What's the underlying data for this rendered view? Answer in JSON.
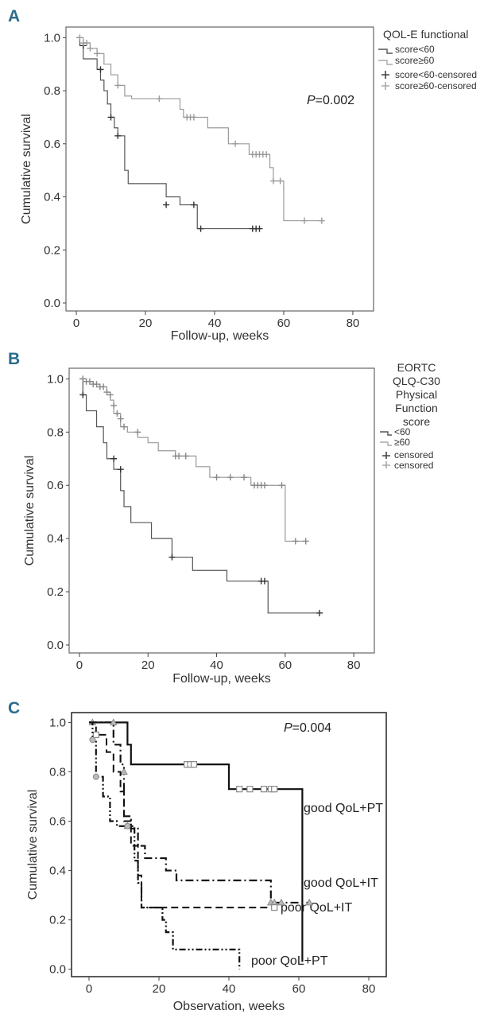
{
  "figure": {
    "panels": [
      {
        "label": "A",
        "legend_title": "QOL-E functional",
        "legend_items": [
          "score<60",
          "score≥60",
          "score<60-censored",
          "score≥60-censored"
        ],
        "p_prefix": "P",
        "p_value": "=0.002"
      },
      {
        "label": "B",
        "legend_title_lines": [
          "EORTC",
          "QLQ-C30",
          "Physical",
          "Function",
          "score"
        ],
        "legend_items": [
          "<60",
          "≥60",
          "censored",
          "censored"
        ]
      },
      {
        "label": "C",
        "p_prefix": "P",
        "p_value": "=0.004",
        "curve_labels": [
          "good QoL+PT",
          "good QoL+IT",
          "poor QoL+IT",
          "poor QoL+PT"
        ]
      }
    ]
  },
  "chart_data": [
    {
      "type": "line",
      "subtype": "kaplan-meier",
      "panel": "A",
      "legend_title": "QOL-E functional",
      "xlabel": "Follow-up, weeks",
      "ylabel": "Cumulative survival",
      "xlim": [
        -3,
        86
      ],
      "ylim": [
        -0.03,
        1.04
      ],
      "x_ticks": [
        0,
        20,
        40,
        60,
        80
      ],
      "y_ticks": [
        0.0,
        0.2,
        0.4,
        0.6,
        0.8,
        1.0
      ],
      "series": [
        {
          "name": "score<60",
          "steps": [
            [
              0,
              1.0
            ],
            [
              1,
              0.97
            ],
            [
              2,
              0.92
            ],
            [
              6,
              0.88
            ],
            [
              7,
              0.84
            ],
            [
              8,
              0.8
            ],
            [
              9,
              0.75
            ],
            [
              10,
              0.7
            ],
            [
              11,
              0.66
            ],
            [
              12,
              0.63
            ],
            [
              14,
              0.5
            ],
            [
              15,
              0.45
            ],
            [
              26,
              0.4
            ],
            [
              30,
              0.37
            ],
            [
              35,
              0.28
            ],
            [
              53,
              0.28
            ]
          ],
          "censored": [
            [
              2,
              0.97
            ],
            [
              7,
              0.88
            ],
            [
              10,
              0.7
            ],
            [
              12,
              0.63
            ],
            [
              26,
              0.37
            ],
            [
              34,
              0.37
            ],
            [
              36,
              0.28
            ],
            [
              51,
              0.28
            ],
            [
              52,
              0.28
            ],
            [
              53,
              0.28
            ]
          ]
        },
        {
          "name": "score≥60",
          "steps": [
            [
              0,
              1.0
            ],
            [
              2,
              0.98
            ],
            [
              4,
              0.96
            ],
            [
              6,
              0.94
            ],
            [
              8,
              0.9
            ],
            [
              10,
              0.86
            ],
            [
              12,
              0.82
            ],
            [
              14,
              0.78
            ],
            [
              16,
              0.77
            ],
            [
              30,
              0.73
            ],
            [
              31,
              0.7
            ],
            [
              38,
              0.66
            ],
            [
              44,
              0.6
            ],
            [
              50,
              0.56
            ],
            [
              56,
              0.51
            ],
            [
              57,
              0.46
            ],
            [
              60,
              0.31
            ],
            [
              71,
              0.31
            ]
          ],
          "censored": [
            [
              1,
              1.0
            ],
            [
              2,
              0.98
            ],
            [
              3,
              0.98
            ],
            [
              4,
              0.96
            ],
            [
              6,
              0.94
            ],
            [
              12,
              0.82
            ],
            [
              24,
              0.77
            ],
            [
              32,
              0.7
            ],
            [
              33,
              0.7
            ],
            [
              34,
              0.7
            ],
            [
              46,
              0.6
            ],
            [
              51,
              0.56
            ],
            [
              52,
              0.56
            ],
            [
              53,
              0.56
            ],
            [
              54,
              0.56
            ],
            [
              55,
              0.56
            ],
            [
              57,
              0.46
            ],
            [
              59,
              0.46
            ],
            [
              66,
              0.31
            ],
            [
              71,
              0.31
            ]
          ]
        }
      ]
    },
    {
      "type": "line",
      "subtype": "kaplan-meier",
      "panel": "B",
      "legend_title": "EORTC QLQ-C30 Physical Function score",
      "xlabel": "Follow-up, weeks",
      "ylabel": "Cumulative survival",
      "xlim": [
        -3,
        86
      ],
      "ylim": [
        -0.03,
        1.04
      ],
      "x_ticks": [
        0,
        20,
        40,
        60,
        80
      ],
      "y_ticks": [
        0.0,
        0.2,
        0.4,
        0.6,
        0.8,
        1.0
      ],
      "series": [
        {
          "name": "<60",
          "steps": [
            [
              0,
              1.0
            ],
            [
              1,
              0.94
            ],
            [
              2,
              0.88
            ],
            [
              5,
              0.82
            ],
            [
              7,
              0.76
            ],
            [
              8,
              0.7
            ],
            [
              10,
              0.66
            ],
            [
              12,
              0.58
            ],
            [
              13,
              0.52
            ],
            [
              15,
              0.46
            ],
            [
              21,
              0.4
            ],
            [
              27,
              0.33
            ],
            [
              33,
              0.28
            ],
            [
              43,
              0.24
            ],
            [
              55,
              0.12
            ],
            [
              71,
              0.12
            ]
          ],
          "censored": [
            [
              1,
              0.94
            ],
            [
              10,
              0.7
            ],
            [
              12,
              0.66
            ],
            [
              27,
              0.33
            ],
            [
              53,
              0.24
            ],
            [
              54,
              0.24
            ],
            [
              70,
              0.12
            ]
          ]
        },
        {
          "name": "≥60",
          "steps": [
            [
              0,
              1.0
            ],
            [
              2,
              0.99
            ],
            [
              4,
              0.98
            ],
            [
              6,
              0.97
            ],
            [
              8,
              0.95
            ],
            [
              9,
              0.92
            ],
            [
              10,
              0.87
            ],
            [
              12,
              0.82
            ],
            [
              14,
              0.8
            ],
            [
              17,
              0.78
            ],
            [
              20,
              0.76
            ],
            [
              23,
              0.73
            ],
            [
              28,
              0.71
            ],
            [
              34,
              0.67
            ],
            [
              38,
              0.63
            ],
            [
              50,
              0.6
            ],
            [
              60,
              0.39
            ],
            [
              66,
              0.39
            ]
          ],
          "censored": [
            [
              1,
              1.0
            ],
            [
              2,
              0.99
            ],
            [
              3,
              0.99
            ],
            [
              4,
              0.98
            ],
            [
              5,
              0.98
            ],
            [
              6,
              0.97
            ],
            [
              7,
              0.97
            ],
            [
              8,
              0.95
            ],
            [
              9,
              0.94
            ],
            [
              10,
              0.9
            ],
            [
              11,
              0.87
            ],
            [
              12,
              0.85
            ],
            [
              13,
              0.82
            ],
            [
              17,
              0.8
            ],
            [
              28,
              0.71
            ],
            [
              29,
              0.71
            ],
            [
              31,
              0.71
            ],
            [
              40,
              0.63
            ],
            [
              44,
              0.63
            ],
            [
              48,
              0.63
            ],
            [
              51,
              0.6
            ],
            [
              52,
              0.6
            ],
            [
              53,
              0.6
            ],
            [
              54,
              0.6
            ],
            [
              59,
              0.6
            ],
            [
              63,
              0.39
            ],
            [
              66,
              0.39
            ]
          ]
        }
      ]
    },
    {
      "type": "line",
      "subtype": "kaplan-meier",
      "panel": "C",
      "xlabel": "Observation, weeks",
      "ylabel": "Cumulative survival",
      "xlim": [
        -5,
        85
      ],
      "ylim": [
        -0.03,
        1.04
      ],
      "x_ticks": [
        0,
        20,
        40,
        60,
        80
      ],
      "y_ticks": [
        0.0,
        0.2,
        0.4,
        0.6,
        0.8,
        1.0
      ],
      "series": [
        {
          "name": "good QoL+PT",
          "style": "solid",
          "steps": [
            [
              0,
              1.0
            ],
            [
              10,
              1.0
            ],
            [
              11,
              0.91
            ],
            [
              12,
              0.83
            ],
            [
              40,
              0.83
            ],
            [
              40,
              0.73
            ],
            [
              61,
              0.73
            ],
            [
              61,
              0.03
            ]
          ],
          "censored": [
            [
              28,
              0.83
            ],
            [
              29,
              0.83
            ],
            [
              30,
              0.83
            ],
            [
              43,
              0.73
            ],
            [
              46,
              0.73
            ],
            [
              50,
              0.73
            ],
            [
              52,
              0.73
            ],
            [
              53,
              0.73
            ]
          ]
        },
        {
          "name": "good QoL+IT",
          "style": "dashdot",
          "steps": [
            [
              0,
              1.0
            ],
            [
              7,
              1.0
            ],
            [
              7,
              0.91
            ],
            [
              9,
              0.83
            ],
            [
              10,
              0.76
            ],
            [
              10,
              0.62
            ],
            [
              12,
              0.57
            ],
            [
              14,
              0.5
            ],
            [
              16,
              0.45
            ],
            [
              20,
              0.45
            ],
            [
              22,
              0.4
            ],
            [
              25,
              0.36
            ],
            [
              50,
              0.36
            ],
            [
              52,
              0.27
            ],
            [
              63,
              0.27
            ]
          ],
          "censored": [
            [
              1,
              1.0
            ],
            [
              7,
              1.0
            ],
            [
              10,
              0.8
            ],
            [
              11,
              0.58
            ],
            [
              52,
              0.27
            ],
            [
              53,
              0.27
            ],
            [
              55,
              0.27
            ],
            [
              63,
              0.27
            ]
          ]
        },
        {
          "name": "poor QoL+IT",
          "style": "dashed",
          "steps": [
            [
              0,
              1.0
            ],
            [
              2,
              0.95
            ],
            [
              5,
              0.88
            ],
            [
              7,
              0.8
            ],
            [
              9,
              0.72
            ],
            [
              10,
              0.6
            ],
            [
              12,
              0.5
            ],
            [
              14,
              0.38
            ],
            [
              15,
              0.25
            ],
            [
              53,
              0.25
            ]
          ],
          "censored": [
            [
              2,
              0.95
            ],
            [
              53,
              0.25
            ]
          ]
        },
        {
          "name": "poor QoL+PT",
          "style": "dashdotdot",
          "steps": [
            [
              0,
              1.0
            ],
            [
              1,
              0.93
            ],
            [
              2,
              0.78
            ],
            [
              4,
              0.7
            ],
            [
              6,
              0.6
            ],
            [
              8,
              0.58
            ],
            [
              11,
              0.58
            ],
            [
              13,
              0.44
            ],
            [
              14,
              0.35
            ],
            [
              15,
              0.25
            ],
            [
              21,
              0.2
            ],
            [
              22,
              0.15
            ],
            [
              24,
              0.08
            ],
            [
              40,
              0.08
            ],
            [
              43,
              0.0
            ]
          ],
          "censored": [
            [
              1,
              0.93
            ],
            [
              2,
              0.78
            ],
            [
              11,
              0.58
            ]
          ]
        }
      ]
    }
  ]
}
